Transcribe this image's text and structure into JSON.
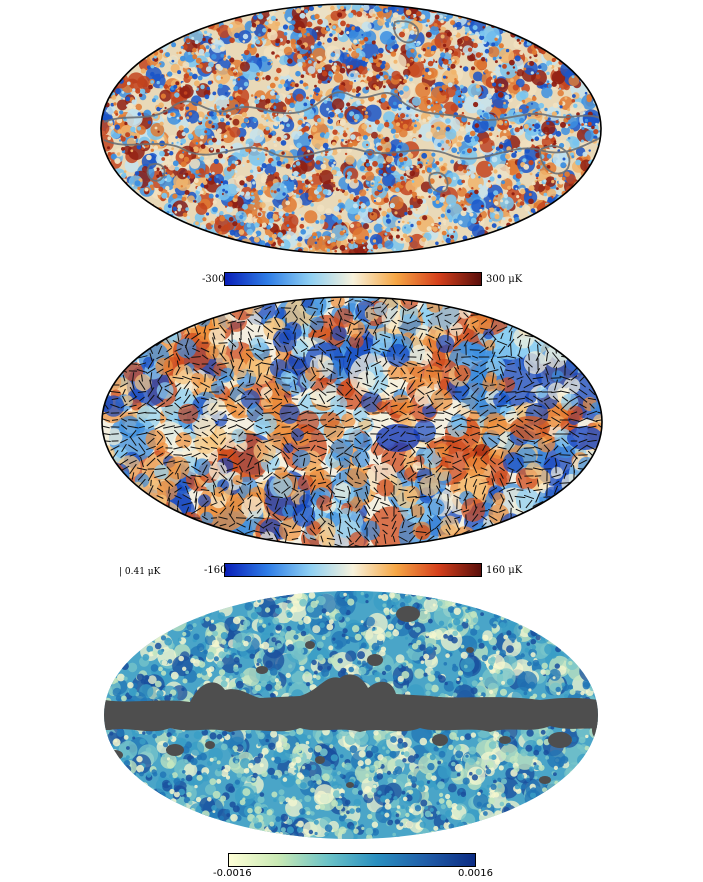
{
  "panels": [
    {
      "colorbar": {
        "min_label": "-300",
        "max_label": "300 μK",
        "colors": [
          "#0a1fb8",
          "#2f7de6",
          "#8fd0f3",
          "#f7f2dc",
          "#f6a746",
          "#d5401c",
          "#5a0f0c"
        ]
      },
      "palette": [
        "#1a55c8",
        "#3c8fe0",
        "#79c4ee",
        "#c4e3ee",
        "#f1e1c0",
        "#f0b46c",
        "#e07a32",
        "#c3441e",
        "#8e1d12"
      ],
      "outline_color": "#6b6f74"
    },
    {
      "colorbar": {
        "min_label": "-160",
        "max_label": "160 μK",
        "colors": [
          "#0a1fb8",
          "#2f7de6",
          "#8fd0f3",
          "#f7f2dc",
          "#f6a746",
          "#d5401c",
          "#5a0f0c"
        ]
      },
      "scale_label": "0.41 μK",
      "palette": [
        "#1447c0",
        "#3c8fe0",
        "#8fd0f3",
        "#f7f2dc",
        "#f7c57e",
        "#ee8e3a",
        "#cf4a1c"
      ]
    },
    {
      "colorbar": {
        "min_label": "-0.0016",
        "max_label": "0.0016",
        "colors": [
          "#ffffd6",
          "#c9e9b4",
          "#6cc3c7",
          "#2a8fbf",
          "#215ea8",
          "#0c2c84"
        ]
      },
      "palette": [
        "#f6f7cf",
        "#c3e6c0",
        "#78c6c9",
        "#3a9dc6",
        "#2176b6",
        "#1a4f9e"
      ],
      "mask_color": "#4e4e4e"
    }
  ]
}
